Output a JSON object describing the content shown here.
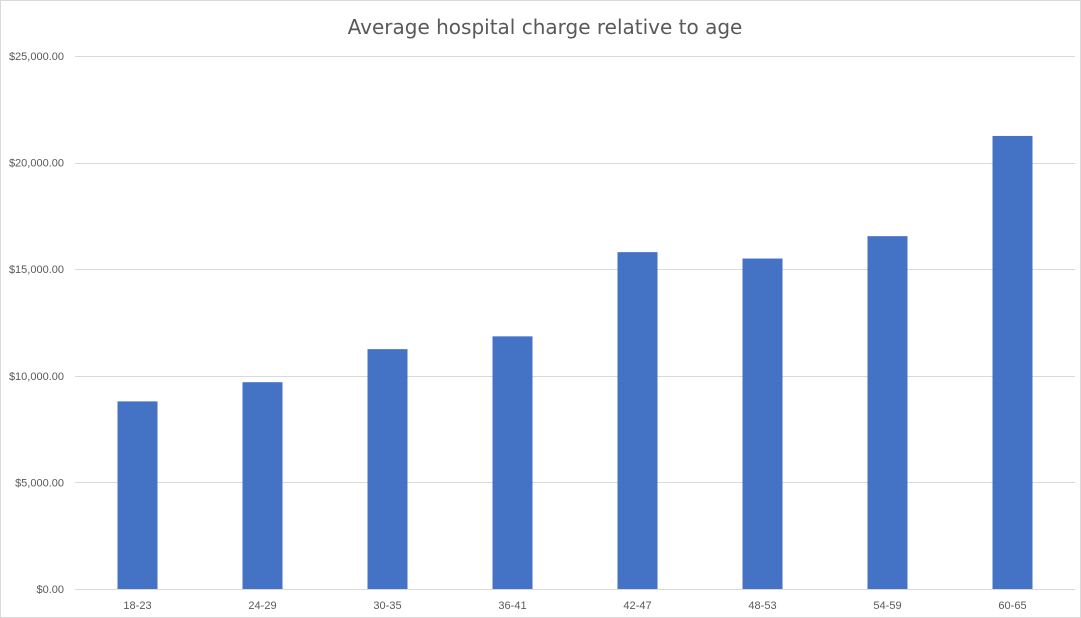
{
  "chart_data": {
    "type": "bar",
    "title": "Average hospital charge relative to age",
    "xlabel": "",
    "ylabel": "",
    "categories": [
      "18-23",
      "24-29",
      "30-35",
      "36-41",
      "42-47",
      "48-53",
      "54-59",
      "60-65"
    ],
    "series": [
      {
        "values": [
          8800,
          9700,
          11250,
          11850,
          15800,
          15500,
          16550,
          21250
        ]
      }
    ],
    "ylim": [
      0,
      25000
    ],
    "yticks": [
      0,
      5000,
      10000,
      15000,
      20000,
      25000
    ],
    "ytick_labels": [
      "$0.00",
      "$5,000.00",
      "$10,000.00",
      "$15,000.00",
      "$20,000.00",
      "$25,000.00"
    ],
    "grid": true,
    "legend": "none",
    "colors": {
      "bar": "#4472c4",
      "grid": "#d9d9d9",
      "text": "#595959"
    }
  }
}
